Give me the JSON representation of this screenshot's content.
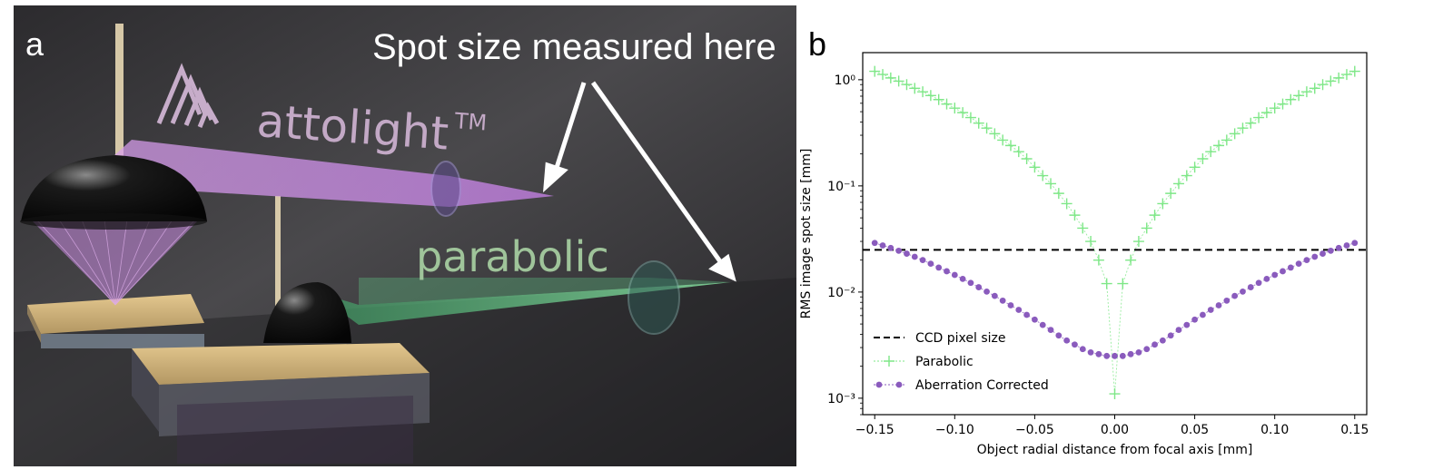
{
  "panel_a": {
    "letter": "a",
    "callout": "Spot size measured here",
    "brand": "attolight",
    "brand_mark": "TM",
    "label_parabolic": "parabolic",
    "colors": {
      "purple_beam": "#c98be0",
      "green_beam": "#7fdc9a",
      "background": "#3d3c3f"
    }
  },
  "panel_b": {
    "letter": "b"
  },
  "chart_data": {
    "type": "scatter",
    "xlabel": "Object radial distance from focal axis [mm]",
    "ylabel": "RMS image spot size [mm]",
    "xlim": [
      -0.1575,
      0.1575
    ],
    "ylim": [
      0.0007,
      1.8
    ],
    "yscale": "log",
    "xticks": [
      -0.15,
      -0.1,
      -0.05,
      0.0,
      0.05,
      0.1,
      0.15
    ],
    "xtick_labels": [
      "−0.15",
      "−0.10",
      "−0.05",
      "0.00",
      "0.05",
      "0.10",
      "0.15"
    ],
    "yticks": [
      0.001,
      0.01,
      0.1,
      1
    ],
    "ytick_labels": [
      "10⁻³",
      "10⁻²",
      "10⁻¹",
      "10⁰"
    ],
    "grid": false,
    "legend_position": "lower-left",
    "series": [
      {
        "name": "CCD pixel size",
        "style": "dashed",
        "color": "#000000",
        "x": [
          -0.1575,
          0.1575
        ],
        "values": [
          0.025,
          0.025
        ]
      },
      {
        "name": "Parabolic",
        "marker": "plus",
        "color": "#7ee787",
        "x": [
          -0.15,
          -0.145,
          -0.14,
          -0.135,
          -0.13,
          -0.125,
          -0.12,
          -0.115,
          -0.11,
          -0.105,
          -0.1,
          -0.095,
          -0.09,
          -0.085,
          -0.08,
          -0.075,
          -0.07,
          -0.065,
          -0.06,
          -0.055,
          -0.05,
          -0.045,
          -0.04,
          -0.035,
          -0.03,
          -0.025,
          -0.02,
          -0.015,
          -0.01,
          -0.005,
          0.0,
          0.005,
          0.01,
          0.015,
          0.02,
          0.025,
          0.03,
          0.035,
          0.04,
          0.045,
          0.05,
          0.055,
          0.06,
          0.065,
          0.07,
          0.075,
          0.08,
          0.085,
          0.09,
          0.095,
          0.1,
          0.105,
          0.11,
          0.115,
          0.12,
          0.125,
          0.13,
          0.135,
          0.14,
          0.145,
          0.15
        ],
        "values": [
          1.2,
          1.12,
          1.04,
          0.97,
          0.9,
          0.83,
          0.77,
          0.71,
          0.65,
          0.59,
          0.54,
          0.49,
          0.44,
          0.39,
          0.35,
          0.31,
          0.27,
          0.24,
          0.21,
          0.18,
          0.15,
          0.125,
          0.105,
          0.085,
          0.068,
          0.053,
          0.04,
          0.03,
          0.02,
          0.012,
          0.0011,
          0.012,
          0.02,
          0.03,
          0.04,
          0.053,
          0.068,
          0.085,
          0.105,
          0.125,
          0.15,
          0.18,
          0.21,
          0.24,
          0.27,
          0.31,
          0.35,
          0.39,
          0.44,
          0.49,
          0.54,
          0.59,
          0.65,
          0.71,
          0.77,
          0.83,
          0.9,
          0.97,
          1.04,
          1.12,
          1.2
        ]
      },
      {
        "name": "Aberration Corrected",
        "marker": "circle",
        "color": "#8a5bbd",
        "x": [
          -0.15,
          -0.145,
          -0.14,
          -0.135,
          -0.13,
          -0.125,
          -0.12,
          -0.115,
          -0.11,
          -0.105,
          -0.1,
          -0.095,
          -0.09,
          -0.085,
          -0.08,
          -0.075,
          -0.07,
          -0.065,
          -0.06,
          -0.055,
          -0.05,
          -0.045,
          -0.04,
          -0.035,
          -0.03,
          -0.025,
          -0.02,
          -0.015,
          -0.01,
          -0.005,
          0.0,
          0.005,
          0.01,
          0.015,
          0.02,
          0.025,
          0.03,
          0.035,
          0.04,
          0.045,
          0.05,
          0.055,
          0.06,
          0.065,
          0.07,
          0.075,
          0.08,
          0.085,
          0.09,
          0.095,
          0.1,
          0.105,
          0.11,
          0.115,
          0.12,
          0.125,
          0.13,
          0.135,
          0.14,
          0.145,
          0.15
        ],
        "values": [
          0.029,
          0.0275,
          0.026,
          0.0245,
          0.023,
          0.0215,
          0.02,
          0.0185,
          0.017,
          0.0157,
          0.0145,
          0.0133,
          0.0122,
          0.0111,
          0.0101,
          0.0092,
          0.0083,
          0.0075,
          0.0068,
          0.0061,
          0.0055,
          0.0049,
          0.0044,
          0.0039,
          0.0035,
          0.0032,
          0.0029,
          0.0027,
          0.0026,
          0.0025,
          0.0025,
          0.0025,
          0.0026,
          0.0027,
          0.0029,
          0.0032,
          0.0035,
          0.0039,
          0.0044,
          0.0049,
          0.0055,
          0.0061,
          0.0068,
          0.0075,
          0.0083,
          0.0092,
          0.0101,
          0.0111,
          0.0122,
          0.0133,
          0.0145,
          0.0157,
          0.017,
          0.0185,
          0.02,
          0.0215,
          0.023,
          0.0245,
          0.026,
          0.0275,
          0.029
        ]
      }
    ]
  }
}
